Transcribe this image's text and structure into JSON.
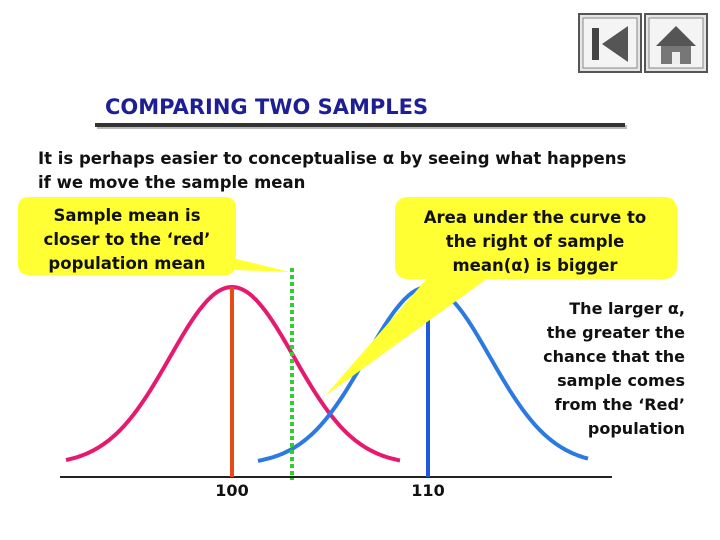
{
  "header": {
    "title": "COMPARING TWO SAMPLES"
  },
  "intro": {
    "lines": [
      "It is perhaps easier to conceptualise α by seeing what happens",
      "if we move the sample mean"
    ]
  },
  "callouts": [
    {
      "lines": [
        "Sample mean is",
        "closer to the ‘red’",
        "population mean"
      ]
    },
    {
      "lines": [
        "Area under the curve to",
        "the right of sample",
        "mean(α) is bigger"
      ]
    }
  ],
  "note": {
    "lines": [
      "The larger α,",
      "the greater the",
      "chance that the",
      "sample comes",
      "from the ‘Red’",
      "population"
    ]
  },
  "axis": {
    "labels": [
      "100",
      "110"
    ]
  }
}
